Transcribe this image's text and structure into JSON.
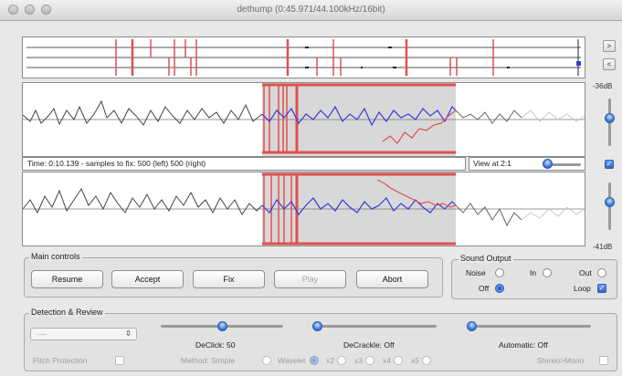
{
  "window": {
    "title": "dethump (0:45.971/44.100kHz/16bit)",
    "traffic_lights": [
      "close",
      "minimize",
      "zoom"
    ]
  },
  "overview": {
    "nav_buttons": [
      ">",
      "<"
    ]
  },
  "waveform": {
    "db_top": "-36dB",
    "db_bottom": "-41dB",
    "status": "Time: 0:10.139 - samples to fix: 500 (left) 500 (right)",
    "view_label": "View at 2:1",
    "view_checkbox_checked": true,
    "colors": {
      "original": "#444444",
      "corrected": "#3a3ad8",
      "marker": "#e05050",
      "selection": "#d8d8d8"
    }
  },
  "main_controls": {
    "label": "Main controls",
    "buttons": {
      "resume": "Resume",
      "accept": "Accept",
      "fix": "Fix",
      "play": "Play",
      "abort": "Abort"
    }
  },
  "sound_output": {
    "label": "Sound Output",
    "noise": "Noise",
    "in": "In",
    "out": "Out",
    "off": "Off",
    "loop": "Loop",
    "selected": "off",
    "loop_checked": true
  },
  "detection": {
    "label": "Detection & Review",
    "preset_value": "----",
    "pitch_protection": "Pitch Protection",
    "declick": "DeClick: 50",
    "decrackle": "DeCrackle: Off",
    "automatic": "Automatic: Off",
    "method_prefix": "Method: Simple",
    "wavelet": "Wavelet",
    "x2": "x2",
    "x3": "x3",
    "x4": "x4",
    "x5": "x5",
    "stereo_mono": "Stereo>Mono",
    "selected_method": "wavelet"
  },
  "accent_color": "#3a7ae0"
}
